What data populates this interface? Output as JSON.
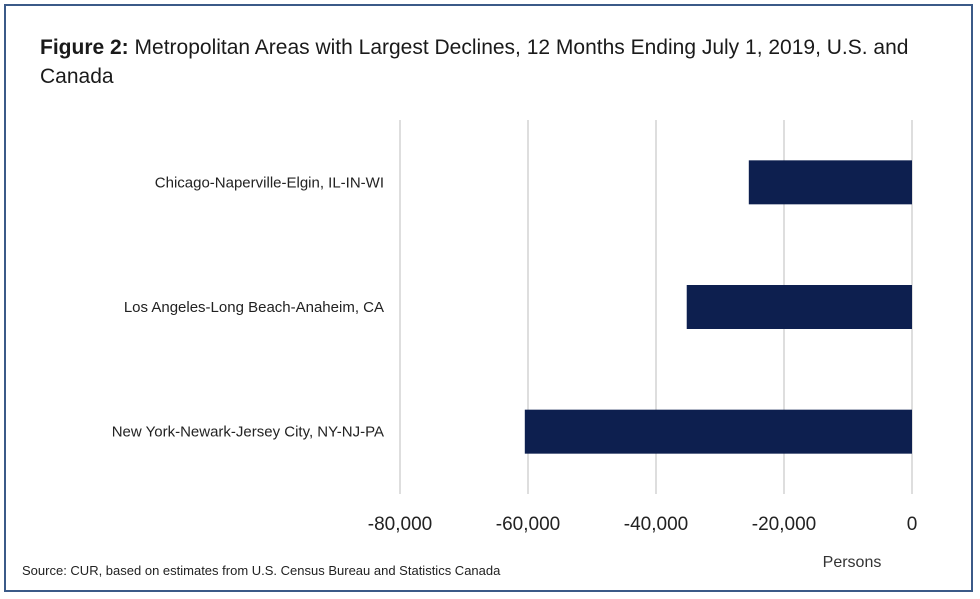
{
  "chart_data": {
    "type": "bar",
    "orientation": "horizontal",
    "title_prefix": "Figure 2:",
    "title": "Metropolitan Areas with Largest Declines, 12 Months Ending July 1, 2019, U.S. and Canada",
    "categories": [
      "Chicago-Naperville-Elgin, IL-IN-WI",
      "Los Angeles-Long Beach-Anaheim, CA",
      "New York-Newark-Jersey City, NY-NJ-PA"
    ],
    "values": [
      -25500,
      -35200,
      -60500
    ],
    "xlim": [
      -80000,
      0
    ],
    "xticks": [
      -80000,
      -60000,
      -40000,
      -20000,
      0
    ],
    "xtick_labels": [
      "-80,000",
      "-60,000",
      "-40,000",
      "-20,000",
      "0"
    ],
    "xlabel": "Persons",
    "ylabel": "",
    "grid": "vertical",
    "bar_color": "#0d1f4f",
    "source": "Source: CUR, based on estimates from U.S. Census Bureau and Statistics Canada"
  }
}
